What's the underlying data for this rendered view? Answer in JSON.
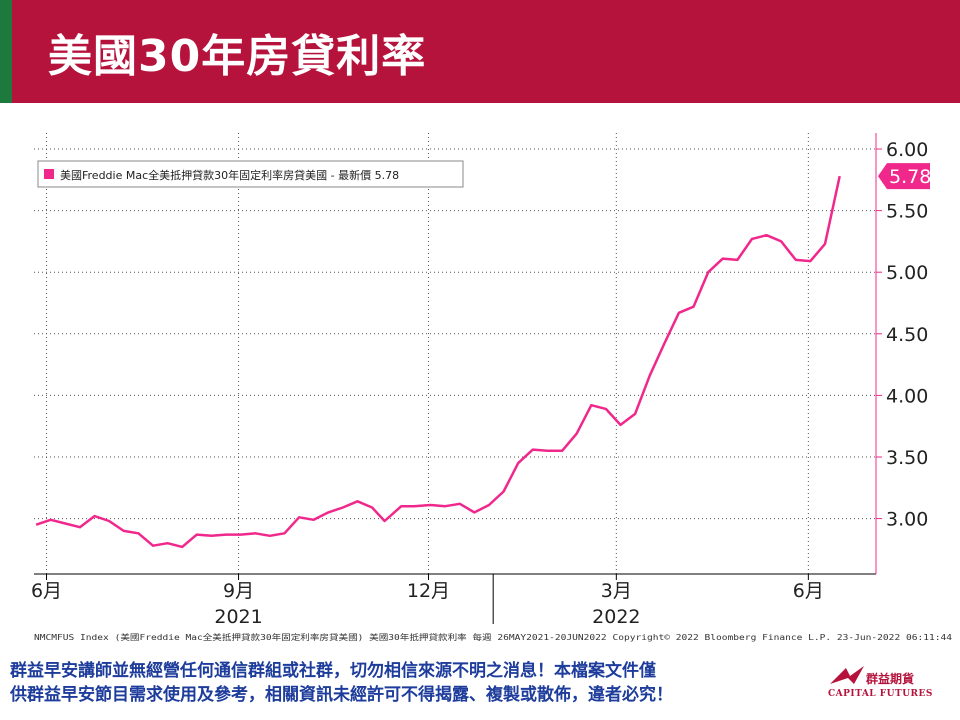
{
  "header": {
    "title": "美國30年房貸利率"
  },
  "chart_data": {
    "type": "line",
    "legend": {
      "label": "美國Freddie Mac全美抵押貸款30年固定利率房貸美國 - 最新價 5.78",
      "position": "top-left"
    },
    "y_axis": {
      "side": "right",
      "min": 2.55,
      "max": 6.13,
      "ticks": [
        "6.00",
        "5.50",
        "5.00",
        "4.50",
        "4.00",
        "3.50",
        "3.00"
      ],
      "grid": true
    },
    "x_axis": {
      "month_labels": [
        "6月",
        "9月",
        "12月",
        "3月",
        "6月"
      ],
      "year_labels": [
        "2021",
        "2022"
      ],
      "range": [
        "2021-05-26",
        "2022-06-20"
      ],
      "grid": true
    },
    "latest_label": "5.78",
    "series": [
      {
        "color": "#f0288c",
        "points": [
          [
            "2021-05-27",
            2.95
          ],
          [
            "2021-06-03",
            2.99
          ],
          [
            "2021-06-10",
            2.96
          ],
          [
            "2021-06-17",
            2.93
          ],
          [
            "2021-06-24",
            3.02
          ],
          [
            "2021-07-01",
            2.98
          ],
          [
            "2021-07-08",
            2.9
          ],
          [
            "2021-07-15",
            2.88
          ],
          [
            "2021-07-22",
            2.78
          ],
          [
            "2021-07-29",
            2.8
          ],
          [
            "2021-08-05",
            2.77
          ],
          [
            "2021-08-12",
            2.87
          ],
          [
            "2021-08-19",
            2.86
          ],
          [
            "2021-08-26",
            2.87
          ],
          [
            "2021-09-02",
            2.87
          ],
          [
            "2021-09-09",
            2.88
          ],
          [
            "2021-09-16",
            2.86
          ],
          [
            "2021-09-23",
            2.88
          ],
          [
            "2021-09-30",
            3.01
          ],
          [
            "2021-10-07",
            2.99
          ],
          [
            "2021-10-14",
            3.05
          ],
          [
            "2021-10-21",
            3.09
          ],
          [
            "2021-10-28",
            3.14
          ],
          [
            "2021-11-04",
            3.09
          ],
          [
            "2021-11-10",
            2.98
          ],
          [
            "2021-11-18",
            3.1
          ],
          [
            "2021-11-24",
            3.1
          ],
          [
            "2021-12-02",
            3.11
          ],
          [
            "2021-12-09",
            3.1
          ],
          [
            "2021-12-16",
            3.12
          ],
          [
            "2021-12-23",
            3.05
          ],
          [
            "2021-12-30",
            3.11
          ],
          [
            "2022-01-06",
            3.22
          ],
          [
            "2022-01-13",
            3.45
          ],
          [
            "2022-01-20",
            3.56
          ],
          [
            "2022-01-27",
            3.55
          ],
          [
            "2022-02-03",
            3.55
          ],
          [
            "2022-02-10",
            3.69
          ],
          [
            "2022-02-17",
            3.92
          ],
          [
            "2022-02-24",
            3.89
          ],
          [
            "2022-03-03",
            3.76
          ],
          [
            "2022-03-10",
            3.85
          ],
          [
            "2022-03-17",
            4.16
          ],
          [
            "2022-03-24",
            4.42
          ],
          [
            "2022-03-31",
            4.67
          ],
          [
            "2022-04-07",
            4.72
          ],
          [
            "2022-04-14",
            5.0
          ],
          [
            "2022-04-21",
            5.11
          ],
          [
            "2022-04-28",
            5.1
          ],
          [
            "2022-05-05",
            5.27
          ],
          [
            "2022-05-12",
            5.3
          ],
          [
            "2022-05-19",
            5.25
          ],
          [
            "2022-05-26",
            5.1
          ],
          [
            "2022-06-02",
            5.09
          ],
          [
            "2022-06-09",
            5.23
          ],
          [
            "2022-06-16",
            5.78
          ]
        ]
      }
    ],
    "source_note": "NMCMFUS Index (美國Freddie Mac全美抵押貸款30年固定利率房貸美國) 美國30年抵押貸款利率  每週 26MAY2021-20JUN2022 Copyright© 2022 Bloomberg Finance L.P. 23-Jun-2022 06:11:44"
  },
  "footer": {
    "disclaimer_line1": "群益早安講師並無經營任何通信群組或社群，切勿相信來源不明之消息！本檔案文件僅",
    "disclaimer_line2": "供群益早安節目需求使用及參考，相關資訊未經許可不得揭露、複製或散佈，違者必究！"
  },
  "logo": {
    "cn": "群益期貨",
    "en": "CAPITAL FUTURES"
  },
  "colors": {
    "header": "#b5133c",
    "accent_green": "#1e7a3c",
    "series": "#f0288c",
    "disclaimer": "#1d3c9b"
  }
}
